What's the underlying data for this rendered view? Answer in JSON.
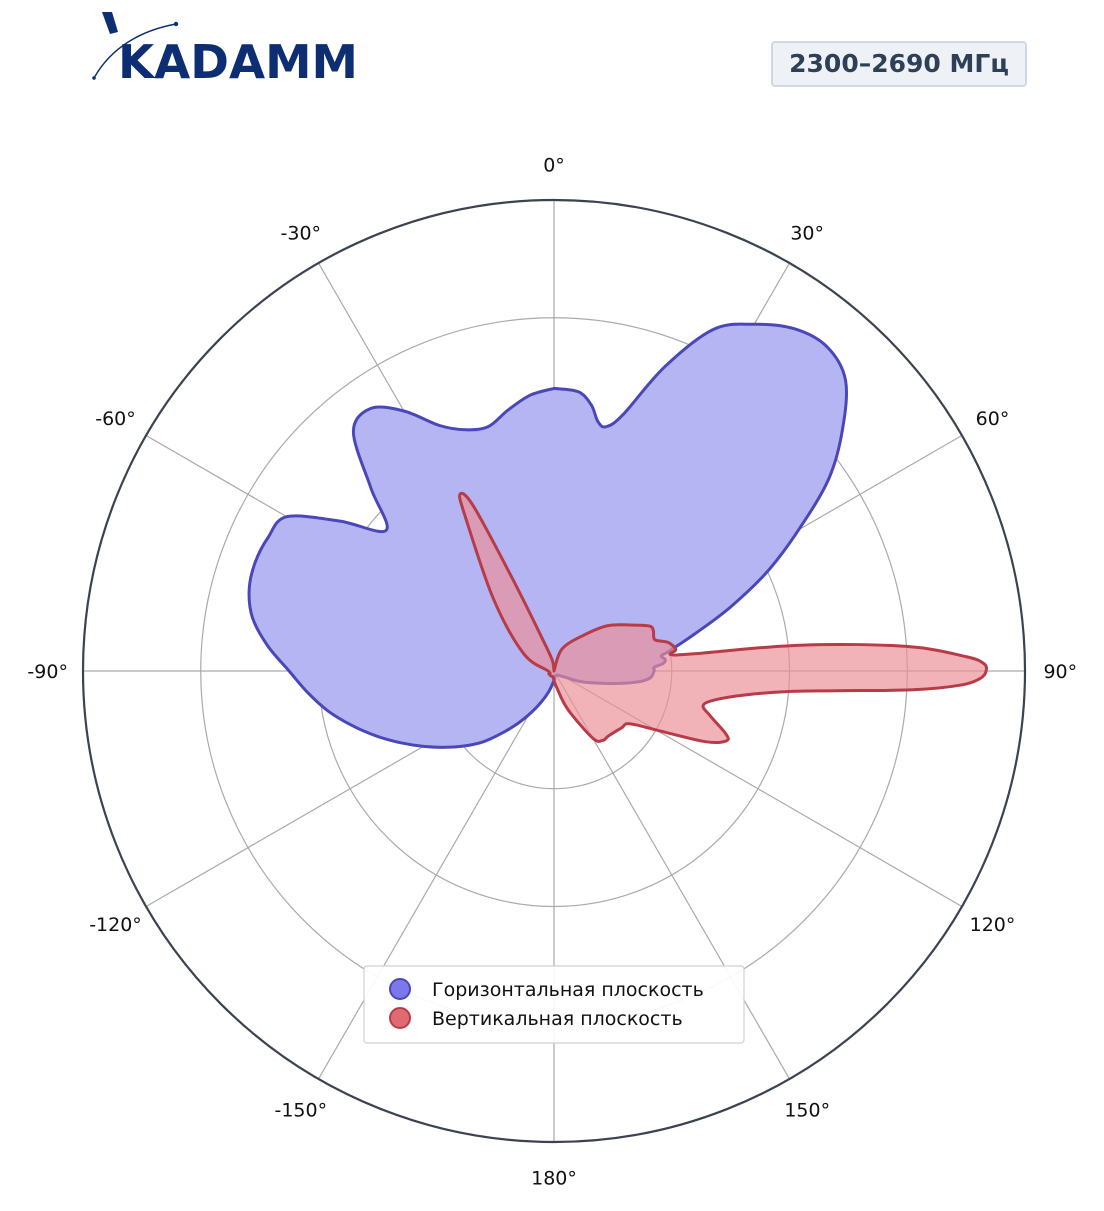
{
  "header": {
    "logo_text": "KADAMM",
    "frequency_badge": "2300–2690 МГц"
  },
  "colors": {
    "horizontal_fill": "#b5b5f4",
    "horizontal_stroke": "#4a48b8",
    "vertical_fill": "#eb8f97",
    "vertical_stroke": "#b83c48",
    "grid": "#aaaaaa",
    "outer_ring": "#3b4250",
    "logo": "#0e2e73",
    "badge_text": "#2e3f58"
  },
  "chart_data": {
    "type": "polar-area",
    "title": "",
    "angle_unit": "deg",
    "angle_zero": "top",
    "angle_direction": "clockwise",
    "radial_range": [
      0,
      4
    ],
    "radial_grid_values": [
      1,
      2,
      3,
      4
    ],
    "angle_ticks": [
      0,
      30,
      60,
      90,
      120,
      150,
      180,
      -150,
      -120,
      -90,
      -60,
      -30
    ],
    "angle_tick_labels": [
      "0°",
      "30°",
      "60°",
      "90°",
      "120°",
      "150°",
      "180°",
      "-150°",
      "-120°",
      "-90°",
      "-60°",
      "-30°"
    ],
    "grid": true,
    "legend_position": "lower-center",
    "series": [
      {
        "name": "Горизонтальная плоскость",
        "points": [
          [
            0,
            2.4
          ],
          [
            5,
            2.38
          ],
          [
            8,
            2.28
          ],
          [
            10,
            2.15
          ],
          [
            12,
            2.12
          ],
          [
            15,
            2.25
          ],
          [
            20,
            2.75
          ],
          [
            25,
            3.2
          ],
          [
            30,
            3.4
          ],
          [
            35,
            3.55
          ],
          [
            40,
            3.6
          ],
          [
            45,
            3.5
          ],
          [
            50,
            3.2
          ],
          [
            55,
            2.85
          ],
          [
            60,
            2.4
          ],
          [
            65,
            2.0
          ],
          [
            70,
            1.6
          ],
          [
            75,
            1.25
          ],
          [
            80,
            1.0
          ],
          [
            82,
            0.92
          ],
          [
            84,
            0.95
          ],
          [
            86,
            0.93
          ],
          [
            88,
            0.85
          ],
          [
            90,
            0.85
          ],
          [
            95,
            0.8
          ],
          [
            100,
            0.6
          ],
          [
            110,
            0.28
          ],
          [
            120,
            0.1
          ],
          [
            150,
            0.04
          ],
          [
            175,
            0.07
          ],
          [
            180,
            0.08
          ],
          [
            185,
            0.1
          ],
          [
            190,
            0.14
          ],
          [
            195,
            0.19
          ],
          [
            200,
            0.25
          ],
          [
            205,
            0.33
          ],
          [
            210,
            0.43
          ],
          [
            215,
            0.55
          ],
          [
            220,
            0.69
          ],
          [
            225,
            0.85
          ],
          [
            230,
            0.99
          ],
          [
            235,
            1.13
          ],
          [
            240,
            1.28
          ],
          [
            245,
            1.44
          ],
          [
            250,
            1.61
          ],
          [
            255,
            1.78
          ],
          [
            260,
            1.95
          ],
          [
            265,
            2.1
          ],
          [
            270,
            2.25
          ],
          [
            275,
            2.44
          ],
          [
            280,
            2.6
          ],
          [
            285,
            2.68
          ],
          [
            290,
            2.7
          ],
          [
            295,
            2.68
          ],
          [
            300,
            2.62
          ],
          [
            305,
            2.22
          ],
          [
            310,
            1.86
          ],
          [
            315,
            2.2
          ],
          [
            320,
            2.65
          ],
          [
            325,
            2.72
          ],
          [
            330,
            2.55
          ],
          [
            335,
            2.3
          ],
          [
            340,
            2.18
          ],
          [
            345,
            2.15
          ],
          [
            350,
            2.25
          ],
          [
            355,
            2.35
          ],
          [
            360,
            2.4
          ]
        ]
      },
      {
        "name": "Вертикальная плоскость",
        "points": [
          [
            0,
            0.0
          ],
          [
            20,
            0.2
          ],
          [
            40,
            0.4
          ],
          [
            50,
            0.6
          ],
          [
            60,
            0.78
          ],
          [
            65,
            0.9
          ],
          [
            68,
            0.91
          ],
          [
            70,
            0.9
          ],
          [
            73,
            0.9
          ],
          [
            76,
            1.0
          ],
          [
            80,
            1.05
          ],
          [
            82,
            1.0
          ],
          [
            83,
            1.2
          ],
          [
            84,
            2.1
          ],
          [
            86,
            3.0
          ],
          [
            88,
            3.5
          ],
          [
            89,
            3.65
          ],
          [
            90,
            3.67
          ],
          [
            91,
            3.62
          ],
          [
            92,
            3.45
          ],
          [
            93,
            3.05
          ],
          [
            94,
            2.4
          ],
          [
            95,
            2.0
          ],
          [
            97,
            1.65
          ],
          [
            100,
            1.4
          ],
          [
            103,
            1.3
          ],
          [
            106,
            1.38
          ],
          [
            110,
            1.55
          ],
          [
            112,
            1.58
          ],
          [
            115,
            1.42
          ],
          [
            120,
            1.0
          ],
          [
            125,
            0.78
          ],
          [
            130,
            0.75
          ],
          [
            140,
            0.72
          ],
          [
            145,
            0.72
          ],
          [
            150,
            0.66
          ],
          [
            160,
            0.35
          ],
          [
            170,
            0.15
          ],
          [
            180,
            0.08
          ],
          [
            190,
            0.05
          ],
          [
            210,
            0.05
          ],
          [
            240,
            0.05
          ],
          [
            270,
            0.05
          ],
          [
            300,
            0.3
          ],
          [
            320,
            0.8
          ],
          [
            330,
            1.5
          ],
          [
            332,
            1.7
          ],
          [
            334,
            1.55
          ],
          [
            336,
            0.8
          ],
          [
            340,
            0.3
          ],
          [
            350,
            0.1
          ],
          [
            360,
            0.0
          ]
        ]
      }
    ]
  }
}
